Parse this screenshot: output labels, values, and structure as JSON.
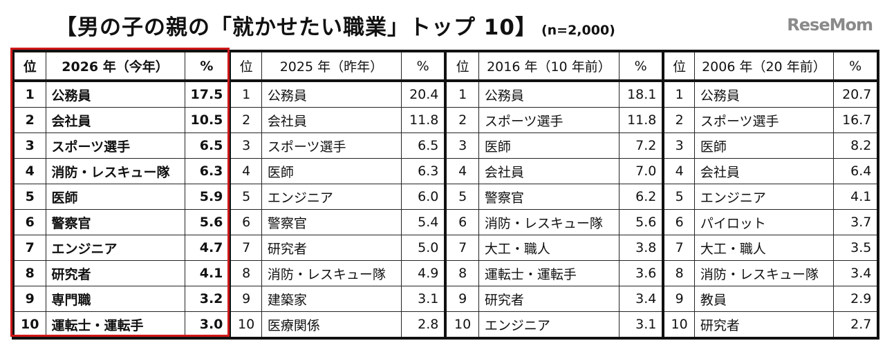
{
  "title": "【男の子の親の「就かせたい職業」トップ 10】",
  "subtitle": "(n=2,000)",
  "highlight_color": "#d01818",
  "groups": [
    {
      "rank_header": "位",
      "year_header": "2026 年（今年）",
      "pct_header": "%",
      "rows": [
        [
          "1",
          "公務員",
          "17.5"
        ],
        [
          "2",
          "会社員",
          "10.5"
        ],
        [
          "3",
          "スポーツ選手",
          "6.5"
        ],
        [
          "4",
          "消防・レスキュー隊",
          "6.3"
        ],
        [
          "5",
          "医師",
          "5.9"
        ],
        [
          "6",
          "警察官",
          "5.6"
        ],
        [
          "7",
          "エンジニア",
          "4.7"
        ],
        [
          "8",
          "研究者",
          "4.1"
        ],
        [
          "9",
          "専門職",
          "3.2"
        ],
        [
          "10",
          "運転士・運転手",
          "3.0"
        ]
      ]
    },
    {
      "rank_header": "位",
      "year_header": "2025 年（昨年）",
      "pct_header": "%",
      "rows": [
        [
          "1",
          "公務員",
          "20.4"
        ],
        [
          "2",
          "会社員",
          "11.8"
        ],
        [
          "3",
          "スポーツ選手",
          "6.5"
        ],
        [
          "4",
          "医師",
          "6.3"
        ],
        [
          "5",
          "エンジニア",
          "6.0"
        ],
        [
          "6",
          "警察官",
          "5.4"
        ],
        [
          "7",
          "研究者",
          "5.0"
        ],
        [
          "8",
          "消防・レスキュー隊",
          "4.9"
        ],
        [
          "9",
          "建築家",
          "3.1"
        ],
        [
          "10",
          "医療関係",
          "2.8"
        ]
      ]
    },
    {
      "rank_header": "位",
      "year_header": "2016 年（10 年前）",
      "pct_header": "%",
      "rows": [
        [
          "1",
          "公務員",
          "18.1"
        ],
        [
          "2",
          "スポーツ選手",
          "11.8"
        ],
        [
          "3",
          "医師",
          "7.2"
        ],
        [
          "4",
          "会社員",
          "7.0"
        ],
        [
          "5",
          "警察官",
          "6.2"
        ],
        [
          "6",
          "消防・レスキュー隊",
          "5.6"
        ],
        [
          "7",
          "大工・職人",
          "3.8"
        ],
        [
          "8",
          "運転士・運転手",
          "3.6"
        ],
        [
          "9",
          "研究者",
          "3.4"
        ],
        [
          "10",
          "エンジニア",
          "3.1"
        ]
      ]
    },
    {
      "rank_header": "位",
      "year_header": "2006 年（20 年前）",
      "pct_header": "%",
      "rows": [
        [
          "1",
          "公務員",
          "20.7"
        ],
        [
          "2",
          "スポーツ選手",
          "16.7"
        ],
        [
          "3",
          "医師",
          "8.2"
        ],
        [
          "4",
          "会社員",
          "6.4"
        ],
        [
          "5",
          "エンジニア",
          "4.1"
        ],
        [
          "6",
          "パイロット",
          "3.7"
        ],
        [
          "7",
          "大工・職人",
          "3.5"
        ],
        [
          "8",
          "消防・レスキュー隊",
          "3.4"
        ],
        [
          "9",
          "教員",
          "2.9"
        ],
        [
          "10",
          "研究者",
          "2.7"
        ]
      ]
    }
  ],
  "watermark": "ReseMom"
}
